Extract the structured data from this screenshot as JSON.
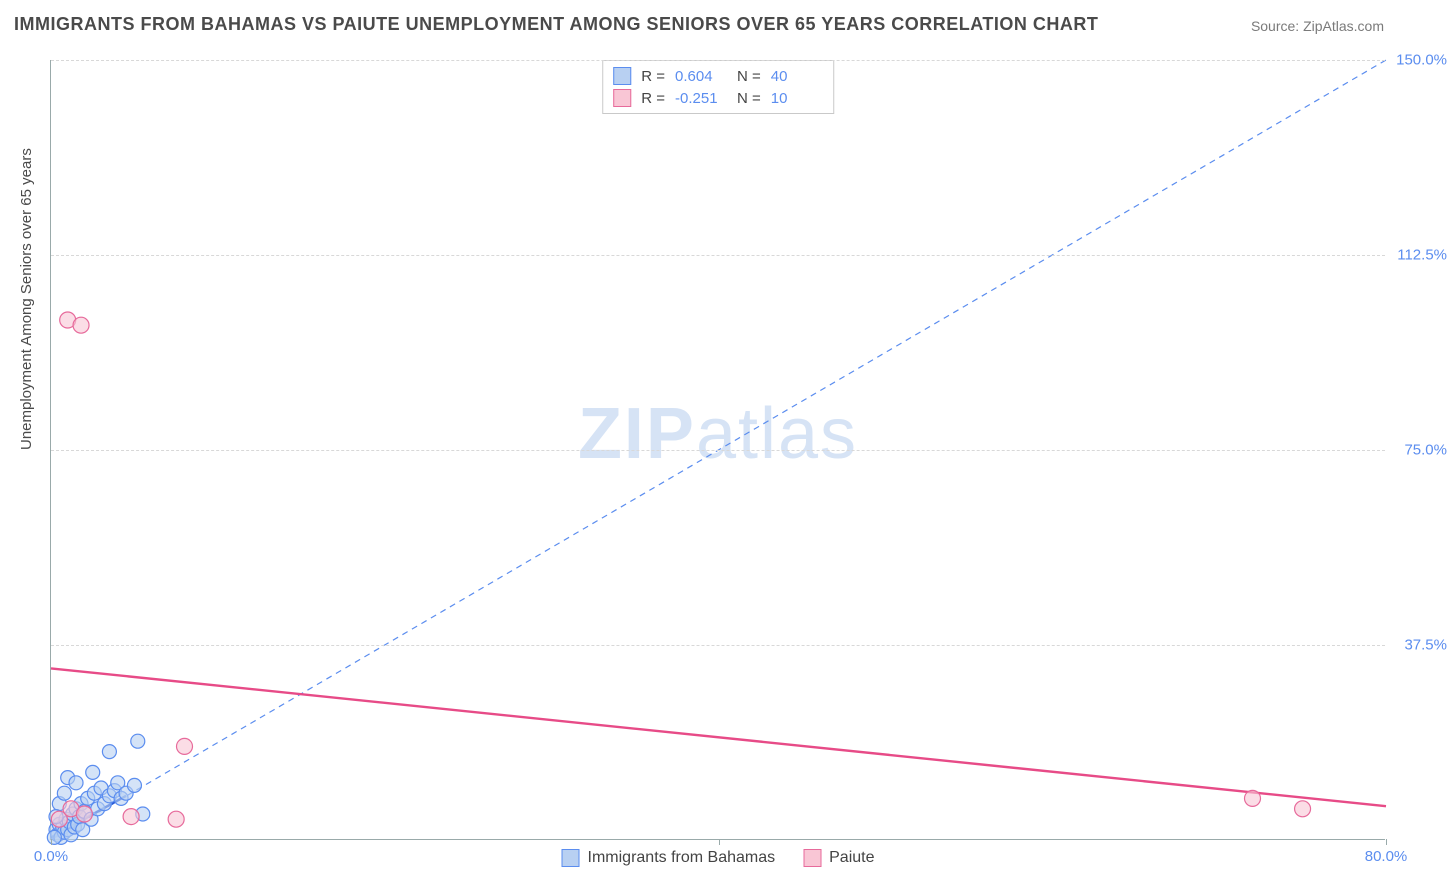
{
  "title": "IMMIGRANTS FROM BAHAMAS VS PAIUTE UNEMPLOYMENT AMONG SENIORS OVER 65 YEARS CORRELATION CHART",
  "source": "Source: ZipAtlas.com",
  "watermark_bold": "ZIP",
  "watermark_rest": "atlas",
  "y_axis_title": "Unemployment Among Seniors over 65 years",
  "chart": {
    "type": "scatter",
    "xlim": [
      0,
      80
    ],
    "ylim": [
      0,
      150
    ],
    "x_ticks": [
      0,
      40,
      80
    ],
    "x_tick_labels": [
      "0.0%",
      "",
      "80.0%"
    ],
    "y_ticks": [
      37.5,
      75.0,
      112.5,
      150.0
    ],
    "y_tick_labels": [
      "37.5%",
      "75.0%",
      "112.5%",
      "150.0%"
    ],
    "grid_color": "#d8d8d8",
    "background_color": "#ffffff",
    "series": [
      {
        "name": "Immigrants from Bahamas",
        "color_fill": "#b8d0f2",
        "color_stroke": "#5b8def",
        "marker_radius": 7,
        "R": "0.604",
        "N": "40",
        "trend": {
          "x1": 0,
          "y1": 0,
          "x2": 80,
          "y2": 150,
          "dash": "6,5",
          "width": 1.2,
          "color": "#5b8def"
        },
        "short_trend": {
          "x1": 0,
          "y1": 0.5,
          "x2": 4.5,
          "y2": 8.5,
          "width": 2.5,
          "color": "#2a5bd7"
        },
        "points": [
          {
            "x": 0.3,
            "y": 2
          },
          {
            "x": 0.4,
            "y": 1
          },
          {
            "x": 0.5,
            "y": 3
          },
          {
            "x": 0.6,
            "y": 0.5
          },
          {
            "x": 0.7,
            "y": 2.5
          },
          {
            "x": 0.8,
            "y": 1.5
          },
          {
            "x": 0.9,
            "y": 4
          },
          {
            "x": 1.0,
            "y": 2
          },
          {
            "x": 1.1,
            "y": 3.5
          },
          {
            "x": 1.2,
            "y": 1
          },
          {
            "x": 1.3,
            "y": 5
          },
          {
            "x": 1.4,
            "y": 2.5
          },
          {
            "x": 1.5,
            "y": 6
          },
          {
            "x": 1.6,
            "y": 3
          },
          {
            "x": 1.7,
            "y": 4.5
          },
          {
            "x": 1.8,
            "y": 7
          },
          {
            "x": 1.9,
            "y": 2
          },
          {
            "x": 2.0,
            "y": 5.5
          },
          {
            "x": 2.2,
            "y": 8
          },
          {
            "x": 2.4,
            "y": 4
          },
          {
            "x": 2.6,
            "y": 9
          },
          {
            "x": 2.8,
            "y": 6
          },
          {
            "x": 3.0,
            "y": 10
          },
          {
            "x": 3.2,
            "y": 7
          },
          {
            "x": 3.5,
            "y": 8.5
          },
          {
            "x": 3.8,
            "y": 9.5
          },
          {
            "x": 4.0,
            "y": 11
          },
          {
            "x": 4.2,
            "y": 8
          },
          {
            "x": 4.5,
            "y": 9
          },
          {
            "x": 5.0,
            "y": 10.5
          },
          {
            "x": 1.0,
            "y": 12
          },
          {
            "x": 2.5,
            "y": 13
          },
          {
            "x": 0.5,
            "y": 7
          },
          {
            "x": 0.8,
            "y": 9
          },
          {
            "x": 1.5,
            "y": 11
          },
          {
            "x": 0.2,
            "y": 0.5
          },
          {
            "x": 0.3,
            "y": 4.5
          },
          {
            "x": 5.2,
            "y": 19
          },
          {
            "x": 3.5,
            "y": 17
          },
          {
            "x": 5.5,
            "y": 5
          }
        ]
      },
      {
        "name": "Paiute",
        "color_fill": "#f9c6d5",
        "color_stroke": "#e76a9b",
        "marker_radius": 8,
        "R": "-0.251",
        "N": "10",
        "trend": {
          "x1": 0,
          "y1": 33,
          "x2": 80,
          "y2": 6.5,
          "dash": "none",
          "width": 2.4,
          "color": "#e74b87"
        },
        "points": [
          {
            "x": 1.0,
            "y": 100
          },
          {
            "x": 1.8,
            "y": 99
          },
          {
            "x": 0.5,
            "y": 4
          },
          {
            "x": 1.2,
            "y": 6
          },
          {
            "x": 2.0,
            "y": 5
          },
          {
            "x": 4.8,
            "y": 4.5
          },
          {
            "x": 7.5,
            "y": 4
          },
          {
            "x": 8.0,
            "y": 18
          },
          {
            "x": 72,
            "y": 8
          },
          {
            "x": 75,
            "y": 6
          }
        ]
      }
    ]
  },
  "legend_bottom": [
    {
      "label": "Immigrants from Bahamas",
      "fill": "#b8d0f2",
      "stroke": "#5b8def"
    },
    {
      "label": "Paiute",
      "fill": "#f9c6d5",
      "stroke": "#e76a9b"
    }
  ]
}
